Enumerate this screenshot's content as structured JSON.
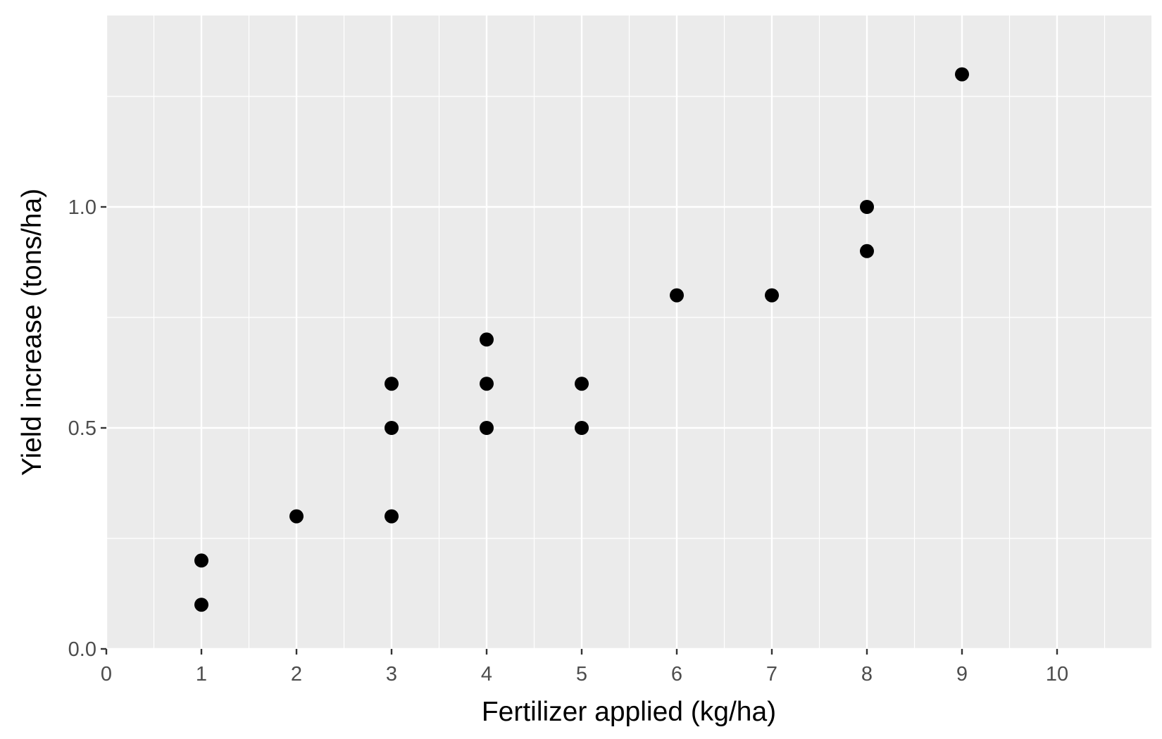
{
  "chart_data": {
    "type": "scatter",
    "title": "",
    "xlabel": "Fertilizer applied (kg/ha)",
    "ylabel": "Yield increase (tons/ha)",
    "xlim": [
      0,
      11
    ],
    "ylim": [
      0,
      1.45
    ],
    "x_ticks": [
      0,
      1,
      2,
      3,
      4,
      5,
      6,
      7,
      8,
      9,
      10
    ],
    "x_tick_labels": [
      "0",
      "1",
      "2",
      "3",
      "4",
      "5",
      "6",
      "7",
      "8",
      "9",
      "10"
    ],
    "y_ticks": [
      0,
      0.5,
      1.0
    ],
    "y_tick_labels": [
      "0.0",
      "0.5",
      "1.0"
    ],
    "grid": true,
    "legend": "none",
    "panel_color": "#ebebeb",
    "grid_color": "#ffffff",
    "point_color": "#000000",
    "series": [
      {
        "points": [
          {
            "x": 1,
            "y": 0.1
          },
          {
            "x": 1,
            "y": 0.2
          },
          {
            "x": 2,
            "y": 0.3
          },
          {
            "x": 3,
            "y": 0.3
          },
          {
            "x": 3,
            "y": 0.5
          },
          {
            "x": 3,
            "y": 0.6
          },
          {
            "x": 4,
            "y": 0.5
          },
          {
            "x": 4,
            "y": 0.6
          },
          {
            "x": 4,
            "y": 0.7
          },
          {
            "x": 5,
            "y": 0.5
          },
          {
            "x": 5,
            "y": 0.6
          },
          {
            "x": 6,
            "y": 0.8
          },
          {
            "x": 7,
            "y": 0.8
          },
          {
            "x": 8,
            "y": 0.9
          },
          {
            "x": 8,
            "y": 1.0
          },
          {
            "x": 9,
            "y": 1.3
          }
        ]
      }
    ]
  }
}
